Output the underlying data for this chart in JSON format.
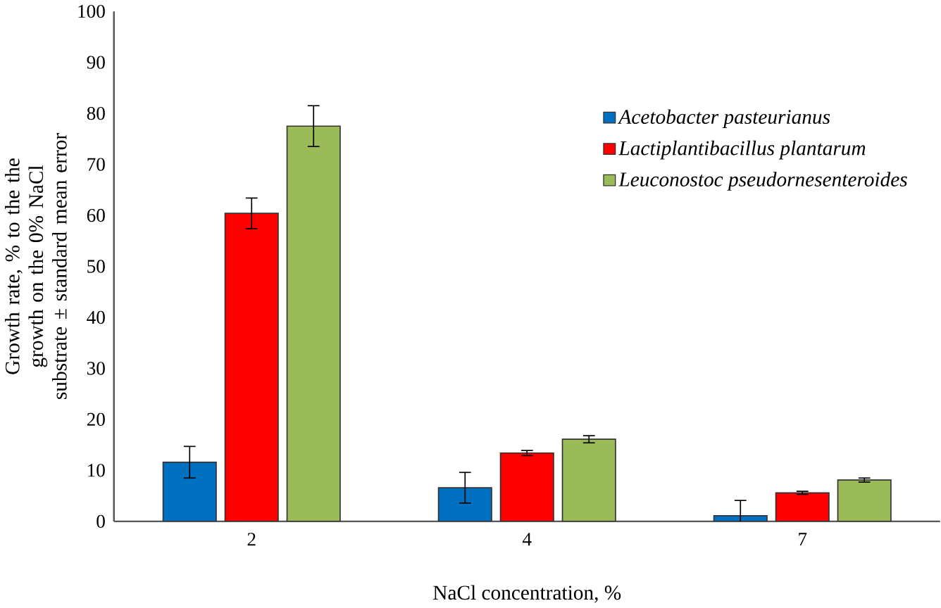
{
  "chart_data": {
    "type": "bar",
    "xlabel": "NaCl concentration, %",
    "ylabel": "Growth rate, % to the the growth on the 0% NaCl substrate ± standard mean error",
    "categories": [
      "2",
      "4",
      "7"
    ],
    "ylim": [
      0,
      100
    ],
    "yticks": [
      0,
      10,
      20,
      30,
      40,
      50,
      60,
      70,
      80,
      90,
      100
    ],
    "grid": false,
    "legend": "top right",
    "series": [
      {
        "name": "Acetobacter pasteurianus",
        "color": "#0070c0",
        "values": [
          11.6,
          6.6,
          1.1
        ],
        "errors": [
          3.1,
          3,
          3
        ]
      },
      {
        "name": "Lactiplantibacillus plantarum",
        "color": "#ff0000",
        "values": [
          60.4,
          13.4,
          5.6
        ],
        "errors": [
          3,
          0.5,
          0.3
        ]
      },
      {
        "name": "Leuconostoc pseudornesenteroides",
        "color": "#9bbb59",
        "values": [
          77.5,
          16.1,
          8.1
        ],
        "errors": [
          4,
          0.7,
          0.4
        ]
      }
    ]
  }
}
